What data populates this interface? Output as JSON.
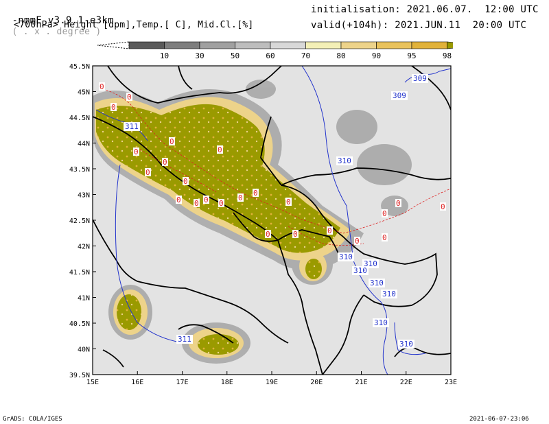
{
  "header": {
    "model_name": "-nmmE_v3.9.1-e3km",
    "projection": "( . x . degree )",
    "init_label": "initialisation: 2021.06.07.  12:00 UTC",
    "field_desc": "<700hPa> Height [dpm],Temp.[ C], Mid.Cl.[%]",
    "valid_label": "valid(+104h): 2021.JUN.11  20:00 UTC"
  },
  "colorbar": {
    "ticks": [
      "10",
      "30",
      "50",
      "60",
      "70",
      "80",
      "90",
      "95",
      "98"
    ],
    "colors": [
      "#5a5a5a",
      "#7e7e7e",
      "#a0a0a0",
      "#bdbdbd",
      "#d8d8d8",
      "#f3efb6",
      "#edd38a",
      "#e9c25c",
      "#e1b23a",
      "#9a9a00"
    ]
  },
  "map": {
    "lat_labels": [
      "45.5N",
      "45N",
      "44.5N",
      "44N",
      "43.5N",
      "43N",
      "42.5N",
      "42N",
      "41.5N",
      "41N",
      "40.5N",
      "40N",
      "39.5N"
    ],
    "lon_labels": [
      "15E",
      "16E",
      "17E",
      "18E",
      "19E",
      "20E",
      "21E",
      "22E",
      "23E"
    ],
    "height_labels": [
      "309",
      "309",
      "311",
      "310",
      "310",
      "310",
      "310",
      "310",
      "310",
      "310",
      "311",
      "310"
    ],
    "temp_label": "0",
    "colors": {
      "background": "#e3e3e3",
      "cloud_high": "#9a9a00",
      "height_contour": "#2233cc",
      "temp_contour": "#dd2222"
    }
  },
  "footer": {
    "left": "GrADS: COLA/IGES",
    "right": "2021-06-07-23:06"
  }
}
